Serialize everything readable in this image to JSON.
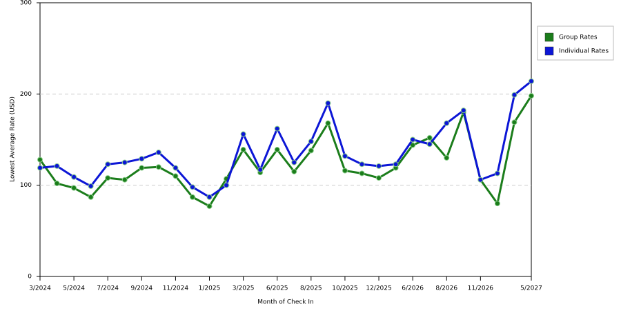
{
  "chart_data": {
    "type": "line",
    "x_label": "Month of Check In",
    "y_label": "Lowest Average Rate (USD)",
    "categories": [
      "3/2024",
      null,
      "5/2024",
      null,
      "7/2024",
      null,
      "9/2024",
      null,
      "11/2024",
      null,
      "1/2025",
      null,
      "3/2025",
      null,
      "6/2025",
      null,
      "8/2025",
      null,
      "10/2025",
      null,
      "12/2025",
      null,
      "6/2026",
      null,
      "8/2026",
      null,
      "11/2026",
      null,
      null,
      "5/2027"
    ],
    "series": [
      {
        "name": "Group Rates",
        "color": "#1b7d1b",
        "values": [
          128,
          102,
          97,
          87,
          108,
          106,
          119,
          120,
          110,
          87,
          77,
          107,
          139,
          114,
          139,
          115,
          138,
          168,
          116,
          113,
          108,
          119,
          144,
          152,
          130,
          180,
          106,
          80,
          169,
          198
        ]
      },
      {
        "name": "Individual Rates",
        "color": "#0c16d6",
        "values": [
          119,
          121,
          109,
          99,
          123,
          125,
          129,
          136,
          119,
          98,
          87,
          100,
          156,
          117,
          162,
          125,
          148,
          190,
          132,
          123,
          121,
          123,
          150,
          145,
          168,
          182,
          106,
          113,
          199,
          214
        ]
      }
    ],
    "ylim": [
      0,
      300
    ],
    "yticks": [
      0,
      100,
      200,
      300
    ],
    "grid": true,
    "legend": "right"
  }
}
